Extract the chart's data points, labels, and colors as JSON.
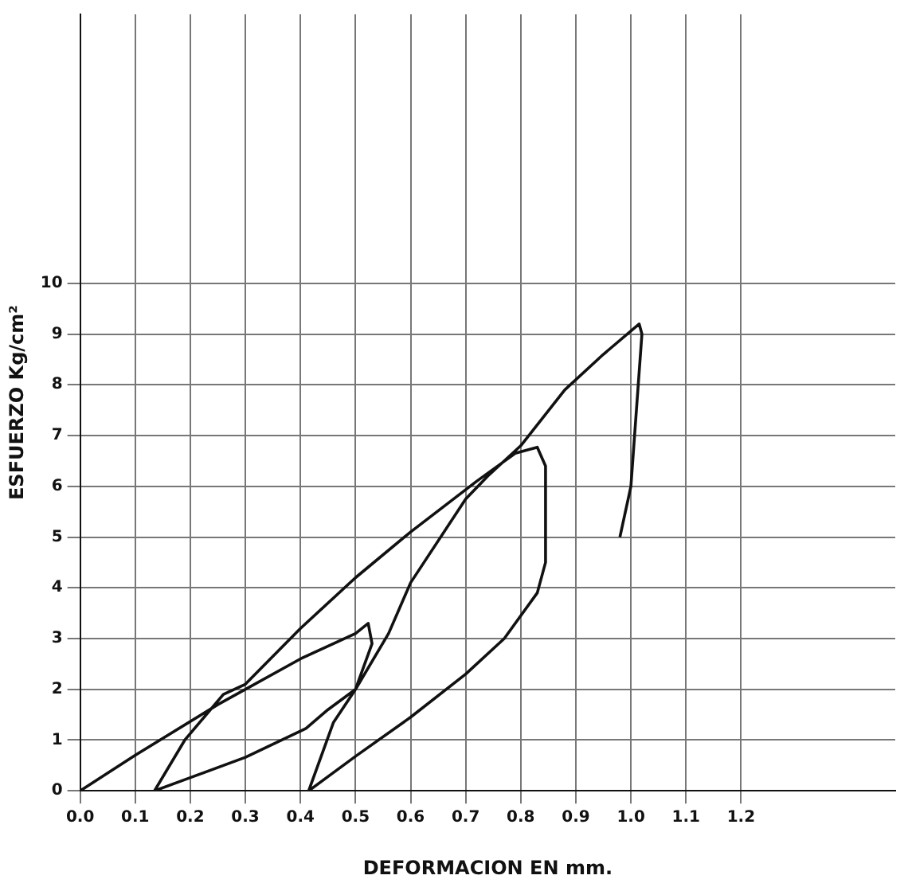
{
  "chart_data": {
    "type": "line",
    "xlabel": "DEFORMACION EN mm.",
    "ylabel": "ESFUERZO Kg/cm²",
    "series": [
      {
        "color": "#111111",
        "x": [
          0,
          0.1,
          0.25,
          0.4,
          0.5,
          0.523,
          0.53,
          0.5,
          0.45,
          0.41,
          0.3,
          0.2,
          0.135,
          0.19,
          0.26,
          0.3,
          0.4,
          0.5,
          0.6,
          0.72,
          0.79,
          0.83,
          0.845,
          0.845,
          0.83,
          0.77,
          0.7,
          0.6,
          0.5,
          0.415,
          0.46,
          0.5,
          0.56,
          0.6,
          0.7,
          0.74,
          0.8,
          0.88,
          0.95,
          1.015,
          1.02,
          1.01,
          1.0,
          0.98
        ],
        "values": [
          0,
          0.7,
          1.7,
          2.6,
          3.1,
          3.3,
          2.9,
          2.0,
          1.6,
          1.23,
          0.66,
          0.26,
          0,
          1.0,
          1.9,
          2.1,
          3.2,
          4.2,
          5.1,
          6.1,
          6.65,
          6.77,
          6.4,
          4.5,
          3.9,
          3.0,
          2.3,
          1.45,
          0.68,
          0,
          1.35,
          2.0,
          3.1,
          4.1,
          5.75,
          6.2,
          6.8,
          7.9,
          8.6,
          9.2,
          9.0,
          7.5,
          6.0,
          5.0
        ]
      }
    ],
    "xlim": [
      0,
      1.48
    ],
    "ylim": [
      0,
      15.3
    ],
    "xticks": [
      {
        "value": 0,
        "label": "0.0"
      },
      0.1,
      0.2,
      0.3,
      0.4,
      0.5,
      0.6,
      0.7,
      0.8,
      0.9,
      {
        "value": 1,
        "label": "1.0"
      },
      1.1,
      1.2
    ],
    "yticks": [
      0,
      1,
      2,
      3,
      4,
      5,
      6,
      7,
      8,
      9,
      10
    ],
    "grid": true,
    "legend": false,
    "marker": "none",
    "line_style": "solid"
  }
}
